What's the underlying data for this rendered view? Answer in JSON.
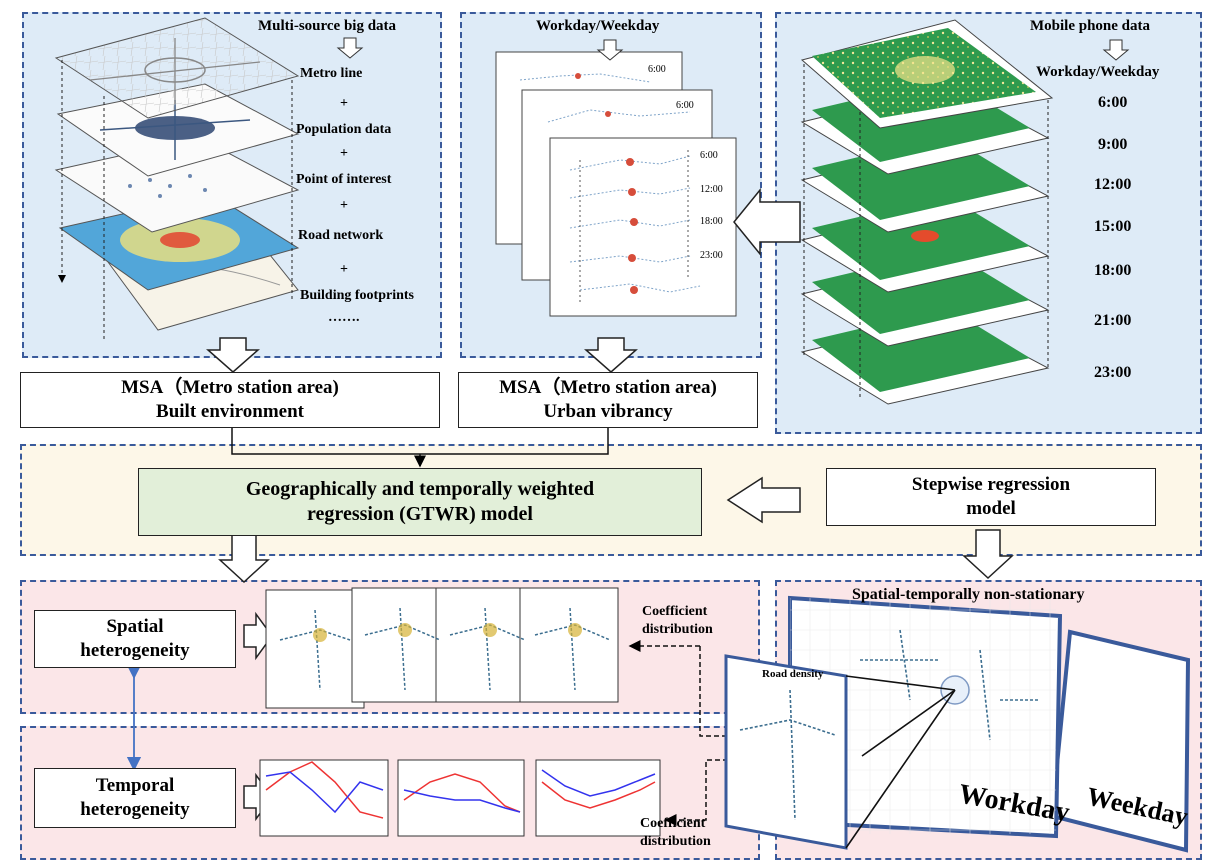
{
  "panels": {
    "multisource": {
      "title": "Multi-source big data",
      "layers": [
        "Metro line",
        "+",
        "Population data",
        "+",
        "Point of interest",
        "+",
        "Road network",
        "+",
        "Building footprints",
        "……."
      ]
    },
    "workday": {
      "title": "Workday/Weekday",
      "times_back": "6:00",
      "times_mid": "6:00",
      "times_front": [
        "6:00",
        "12:00",
        "18:00",
        "23:00"
      ]
    },
    "mobile": {
      "title": "Mobile phone data",
      "subtitle": "Workday/Weekday",
      "times": [
        "6:00",
        "9:00",
        "12:00",
        "15:00",
        "18:00",
        "21:00",
        "23:00"
      ]
    }
  },
  "boxes": {
    "built_env": {
      "line1": "MSA（Metro station area)",
      "line2": "Built environment"
    },
    "vibrancy": {
      "line1": "MSA（Metro station area)",
      "line2": "Urban vibrancy"
    },
    "gtwr": {
      "line1": "Geographically and temporally weighted",
      "line2": "regression (GTWR) model"
    },
    "stepwise": {
      "line1": "Stepwise regression",
      "line2": "model"
    },
    "spatial": {
      "line1": "Spatial",
      "line2": "heterogeneity"
    },
    "temporal": {
      "line1": "Temporal",
      "line2": "heterogeneity"
    }
  },
  "labels": {
    "coef1_a": "Coefficient",
    "coef1_b": "distribution",
    "coef2_a": "Coefficient",
    "coef2_b": "distribution",
    "nonstationary": "Spatial-temporally non-stationary",
    "workday": "Workday",
    "weekday": "Weekday",
    "road_density": "Road density"
  },
  "colors": {
    "panel_border": "#3a5a9b",
    "gtwr_fill": "#e2efd9",
    "green_map": "#2e9a4e",
    "blue_arrow": "#4472c4"
  }
}
